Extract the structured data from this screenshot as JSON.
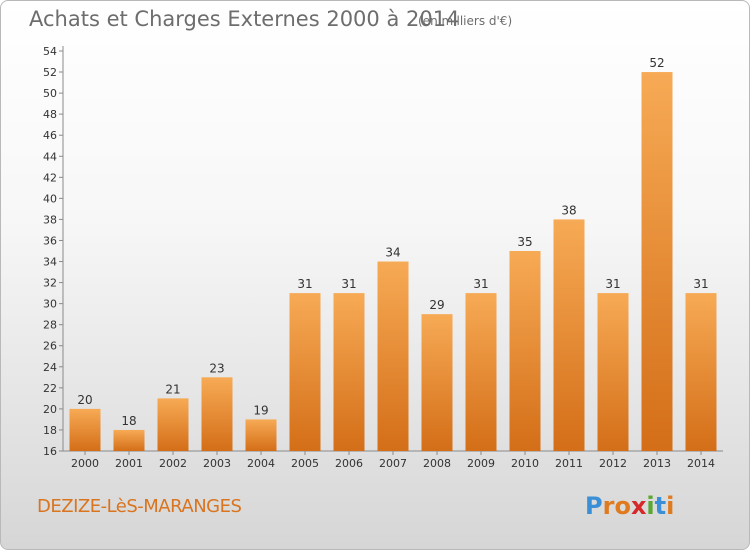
{
  "header": {
    "title": "Achats et Charges Externes 2000 à 2014",
    "subtitle": "(en milliers d'€)"
  },
  "footer": {
    "commune": "DEZIZE-LèS-MARANGES",
    "logo_letters": [
      "P",
      "r",
      "o",
      "x",
      "i",
      "t",
      "i"
    ],
    "logo_colors": [
      "#3a8fd6",
      "#e07a1e",
      "#e07a1e",
      "#d62828",
      "#5aa832",
      "#3a8fd6",
      "#e07a1e"
    ]
  },
  "colors": {
    "bar_light": "#f6a650",
    "bar_dark": "#d9711a",
    "axis": "#888888",
    "text": "#333333"
  },
  "chart_data": {
    "type": "bar",
    "title": "Achats et Charges Externes 2000 à 2014",
    "xlabel": "",
    "ylabel": "",
    "categories": [
      "2000",
      "2001",
      "2002",
      "2003",
      "2004",
      "2005",
      "2006",
      "2007",
      "2008",
      "2009",
      "2010",
      "2011",
      "2012",
      "2013",
      "2014"
    ],
    "values": [
      20,
      18,
      21,
      23,
      19,
      31,
      31,
      34,
      29,
      31,
      35,
      38,
      31,
      52,
      31
    ],
    "ylim": [
      16,
      54
    ],
    "yticks": [
      16,
      18,
      20,
      22,
      24,
      26,
      28,
      30,
      32,
      34,
      36,
      38,
      40,
      42,
      44,
      46,
      48,
      50,
      52,
      54
    ],
    "grid": false,
    "legend": "none"
  }
}
